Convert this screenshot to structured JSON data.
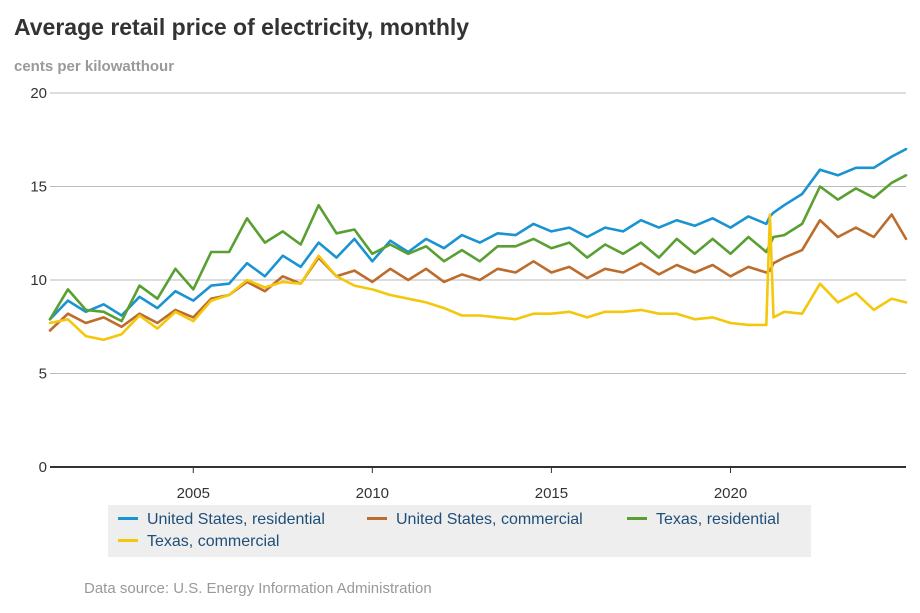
{
  "title": "Average retail price of electricity, monthly",
  "subtitle": "cents per kilowatthour",
  "source": "Data source: U.S. Energy Information Administration",
  "colors": {
    "us_residential": "#1a93d1",
    "us_commercial": "#bc6d2d",
    "tx_residential": "#5a9f32",
    "tx_commercial": "#f5c70c",
    "grid": "#bbbbbb",
    "axis": "#333333",
    "legend_bg": "#eeeeee"
  },
  "chart_data": {
    "type": "line",
    "title": "Average retail price of electricity, monthly",
    "ylabel": "cents per kilowatthour",
    "xlabel": "",
    "xlim": [
      2001,
      2024.9
    ],
    "ylim": [
      0,
      20
    ],
    "y_ticks": [
      "0",
      "5",
      "10",
      "15",
      "20"
    ],
    "x_ticks": [
      "2005",
      "2010",
      "2015",
      "2020"
    ],
    "grid": true,
    "legend_position": "bottom",
    "x": [
      2001.0,
      2001.5,
      2002.0,
      2002.5,
      2003.0,
      2003.5,
      2004.0,
      2004.5,
      2005.0,
      2005.5,
      2006.0,
      2006.5,
      2007.0,
      2007.5,
      2008.0,
      2008.5,
      2009.0,
      2009.5,
      2010.0,
      2010.5,
      2011.0,
      2011.5,
      2012.0,
      2012.5,
      2013.0,
      2013.5,
      2014.0,
      2014.5,
      2015.0,
      2015.5,
      2016.0,
      2016.5,
      2017.0,
      2017.5,
      2018.0,
      2018.5,
      2019.0,
      2019.5,
      2020.0,
      2020.5,
      2021.0,
      2021.1,
      2021.2,
      2021.5,
      2022.0,
      2022.5,
      2023.0,
      2023.5,
      2024.0,
      2024.5,
      2024.9
    ],
    "series": [
      {
        "name": "United States, residential",
        "key": "us_residential",
        "values": [
          7.9,
          8.9,
          8.3,
          8.7,
          8.1,
          9.1,
          8.5,
          9.4,
          8.9,
          9.7,
          9.8,
          10.9,
          10.2,
          11.3,
          10.7,
          12.0,
          11.2,
          12.2,
          11.0,
          12.1,
          11.5,
          12.2,
          11.7,
          12.4,
          12.0,
          12.5,
          12.4,
          13.0,
          12.6,
          12.8,
          12.3,
          12.8,
          12.6,
          13.2,
          12.8,
          13.2,
          12.9,
          13.3,
          12.8,
          13.4,
          13.0,
          13.4,
          13.6,
          14.0,
          14.6,
          15.9,
          15.6,
          16.0,
          16.0,
          16.6,
          17.0
        ]
      },
      {
        "name": "United States, commercial",
        "key": "us_commercial",
        "values": [
          7.3,
          8.2,
          7.7,
          8.0,
          7.5,
          8.2,
          7.7,
          8.4,
          8.0,
          9.0,
          9.2,
          9.9,
          9.4,
          10.2,
          9.8,
          11.2,
          10.2,
          10.5,
          9.9,
          10.6,
          10.0,
          10.6,
          9.9,
          10.3,
          10.0,
          10.6,
          10.4,
          11.0,
          10.4,
          10.7,
          10.1,
          10.6,
          10.4,
          10.9,
          10.3,
          10.8,
          10.4,
          10.8,
          10.2,
          10.7,
          10.4,
          10.5,
          10.9,
          11.2,
          11.6,
          13.2,
          12.3,
          12.8,
          12.3,
          13.5,
          12.2
        ]
      },
      {
        "name": "Texas, residential",
        "key": "tx_residential",
        "values": [
          7.9,
          9.5,
          8.4,
          8.3,
          7.8,
          9.7,
          9.0,
          10.6,
          9.5,
          11.5,
          11.5,
          13.3,
          12.0,
          12.6,
          11.9,
          14.0,
          12.5,
          12.7,
          11.4,
          11.9,
          11.4,
          11.8,
          11.0,
          11.6,
          11.0,
          11.8,
          11.8,
          12.2,
          11.7,
          12.0,
          11.2,
          11.9,
          11.4,
          12.0,
          11.2,
          12.2,
          11.4,
          12.2,
          11.4,
          12.3,
          11.5,
          11.9,
          12.3,
          12.4,
          13.0,
          15.0,
          14.3,
          14.9,
          14.4,
          15.2,
          15.6
        ]
      },
      {
        "name": "Texas, commercial",
        "key": "tx_commercial",
        "values": [
          7.7,
          7.9,
          7.0,
          6.8,
          7.1,
          8.1,
          7.4,
          8.3,
          7.8,
          8.9,
          9.2,
          10.0,
          9.6,
          9.9,
          9.8,
          11.3,
          10.2,
          9.7,
          9.5,
          9.2,
          9.0,
          8.8,
          8.5,
          8.1,
          8.1,
          8.0,
          7.9,
          8.2,
          8.2,
          8.3,
          8.0,
          8.3,
          8.3,
          8.4,
          8.2,
          8.2,
          7.9,
          8.0,
          7.7,
          7.6,
          7.6,
          13.5,
          8.0,
          8.3,
          8.2,
          9.8,
          8.8,
          9.3,
          8.4,
          9.0,
          8.8
        ]
      }
    ]
  }
}
